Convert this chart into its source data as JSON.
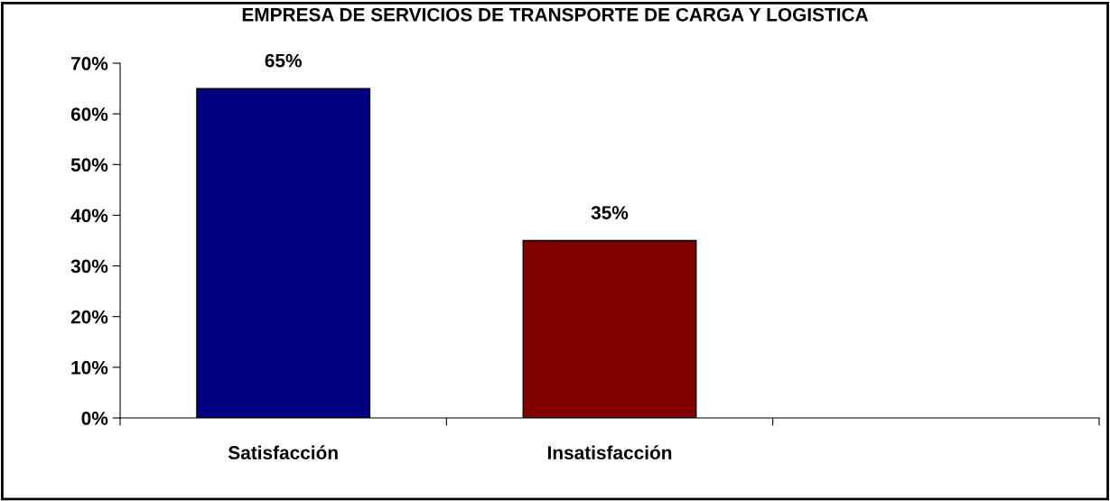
{
  "chart_data": {
    "type": "bar",
    "title": "EMPRESA DE SERVICIOS DE TRANSPORTE DE CARGA Y LOGISTICA",
    "categories": [
      "Satisfacción",
      "Insatisfacción",
      null
    ],
    "values": [
      65,
      35,
      null
    ],
    "colors": [
      "#000080",
      "#800000",
      "#808080"
    ],
    "ylim": [
      0,
      70
    ],
    "yticks": [
      {
        "value": 0,
        "label": "0%"
      },
      {
        "value": 10,
        "label": "10%"
      },
      {
        "value": 20,
        "label": "20%"
      },
      {
        "value": 30,
        "label": "30%"
      },
      {
        "value": 40,
        "label": "40%"
      },
      {
        "value": 50,
        "label": "50%"
      },
      {
        "value": 60,
        "label": "60%"
      },
      {
        "value": 70,
        "label": "70%"
      }
    ],
    "value_labels": [
      "65%",
      "35%",
      null
    ],
    "grid": false,
    "legend": false
  }
}
